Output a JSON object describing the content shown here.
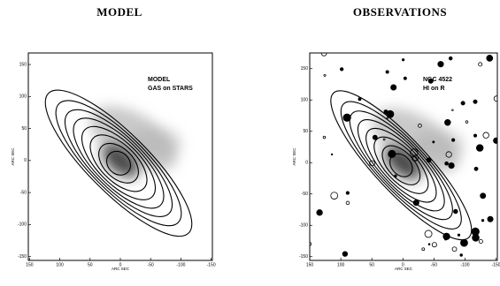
{
  "panels": [
    {
      "title": "MODEL",
      "labels": [
        "MODEL",
        "GAS on STARS"
      ],
      "xlabel": "ARC SEC",
      "ylabel": "ARC SEC",
      "xlim": [
        152,
        -152
      ],
      "ylim": [
        -156,
        168
      ],
      "xticks": [
        150,
        100,
        50,
        0,
        -50,
        -100,
        -150
      ],
      "yticks": [
        150,
        100,
        50,
        0,
        -50,
        -100,
        -150
      ]
    },
    {
      "title": "OBSERVATIONS",
      "labels": [
        "NGC 4522",
        "HI on R"
      ],
      "xlabel": "ARC SEC",
      "ylabel": "ARC SEC",
      "xlim": [
        150,
        -152
      ],
      "ylim": [
        -156,
        175
      ],
      "xticks": [
        150,
        100,
        50,
        0,
        -50,
        -100,
        -150
      ],
      "yticks": [
        150,
        100,
        50,
        0,
        -50,
        -100,
        -150
      ]
    }
  ]
}
